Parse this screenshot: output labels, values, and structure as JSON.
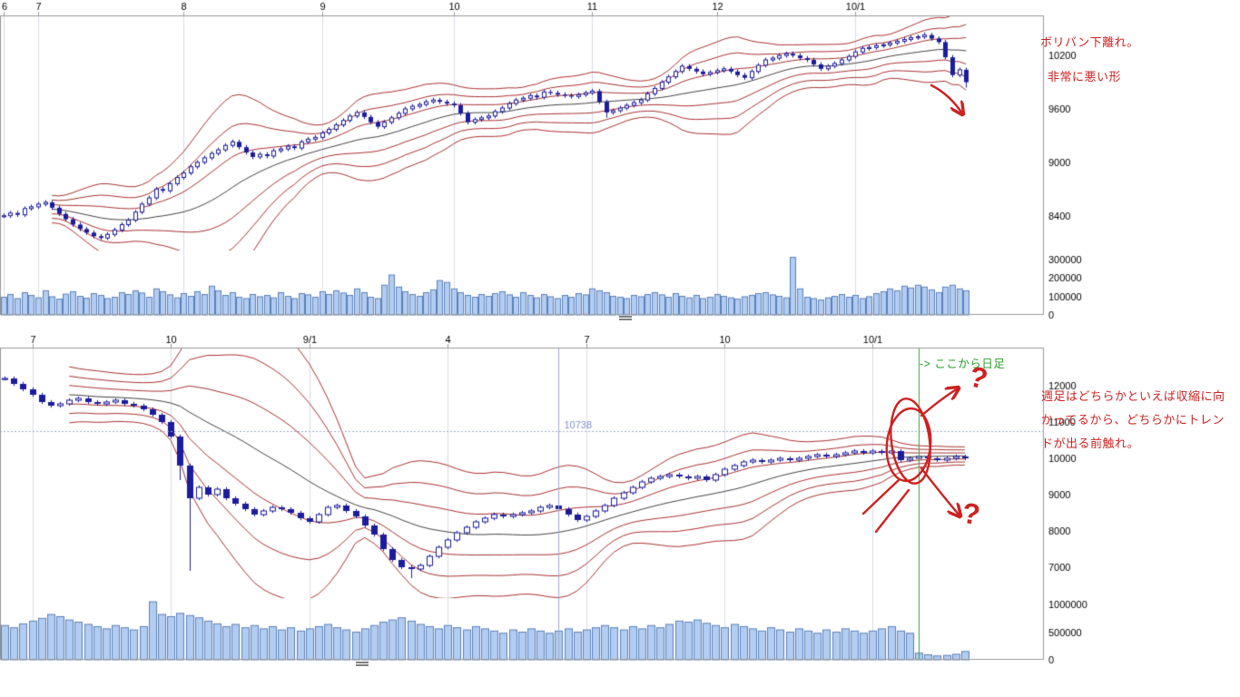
{
  "colors": {
    "candle": "#1c1c9e",
    "volume_fill": "#b3cdf2",
    "volume_border": "#5b80b8",
    "band": "#a83232",
    "band_mid": "#444444",
    "grid": "#d9dde9",
    "frame": "#9a9a9a",
    "crosshair": "#a0abce",
    "crosshair_label": "#8691c9",
    "annotation_red": "#cc2222",
    "annotation_green": "#2ca02c",
    "event_line_green": "#3aa53a"
  },
  "annotations": {
    "daily": {
      "line1": "ボリバン下離れ。",
      "line2": "非常に悪い形"
    },
    "weekly": {
      "green_note": "-> ここから日足",
      "red_lines": [
        "週足はどちらかといえば収縮に向",
        "かってるから、どちらかにトレン",
        "ドが出る前触れ。"
      ],
      "question_mark": "?"
    }
  },
  "chart_data": [
    {
      "id": "daily-chart",
      "type": "candlestick",
      "timeframe_hint": "daily with bollinger bands and volume",
      "x_axis": {
        "labels": [
          {
            "text": "6",
            "bar": 0
          },
          {
            "text": "7",
            "bar": 5
          },
          {
            "text": "8",
            "bar": 26
          },
          {
            "text": "9",
            "bar": 46
          },
          {
            "text": "10",
            "bar": 65
          },
          {
            "text": "11",
            "bar": 85
          },
          {
            "text": "12",
            "bar": 103
          },
          {
            "text": "10/1",
            "bar": 123
          }
        ]
      },
      "y_axis": {
        "min": 8050,
        "max": 10650,
        "ticks": [
          10200,
          9600,
          9000,
          8400
        ]
      },
      "volume_axis": {
        "max": 347000,
        "ticks": [
          300000,
          200000,
          100000,
          0
        ]
      },
      "overlays": {
        "bollinger_period": 20,
        "bollinger_sigmas": [
          1,
          2,
          3
        ]
      },
      "candle_rule": {
        "open": "previous_close",
        "default_wick": 25
      },
      "closes": [
        8400,
        8430,
        8410,
        8480,
        8500,
        8530,
        8550,
        8490,
        8420,
        8360,
        8300,
        8250,
        8210,
        8170,
        8150,
        8190,
        8240,
        8300,
        8350,
        8440,
        8530,
        8600,
        8700,
        8680,
        8760,
        8830,
        8880,
        8950,
        9000,
        9050,
        9100,
        9140,
        9190,
        9230,
        9170,
        9110,
        9060,
        9090,
        9070,
        9130,
        9150,
        9180,
        9160,
        9230,
        9260,
        9280,
        9330,
        9370,
        9420,
        9470,
        9520,
        9560,
        9510,
        9450,
        9400,
        9450,
        9500,
        9550,
        9600,
        9630,
        9650,
        9680,
        9700,
        9680,
        9660,
        9640,
        9550,
        9450,
        9480,
        9500,
        9520,
        9570,
        9610,
        9660,
        9700,
        9720,
        9750,
        9730,
        9790,
        9780,
        9760,
        9750,
        9740,
        9760,
        9780,
        9800,
        9680,
        9560,
        9580,
        9610,
        9640,
        9670,
        9700,
        9770,
        9830,
        9900,
        9960,
        10020,
        10080,
        10050,
        10020,
        9990,
        10010,
        10030,
        10050,
        10020,
        9980,
        9950,
        10020,
        10090,
        10150,
        10170,
        10200,
        10220,
        10200,
        10170,
        10150,
        10100,
        10050,
        10080,
        10110,
        10150,
        10190,
        10240,
        10280,
        10290,
        10310,
        10320,
        10340,
        10360,
        10380,
        10400,
        10410,
        10430,
        10390,
        10350,
        10180,
        9980,
        10040,
        9900
      ],
      "volumes": [
        95000,
        110000,
        88000,
        120000,
        105000,
        92000,
        130000,
        98000,
        85000,
        112000,
        125000,
        100000,
        90000,
        115000,
        105000,
        88000,
        95000,
        120000,
        110000,
        130000,
        118000,
        95000,
        140000,
        125000,
        108000,
        92000,
        115000,
        100000,
        125000,
        110000,
        155000,
        130000,
        105000,
        120000,
        95000,
        88000,
        110000,
        98000,
        105000,
        92000,
        120000,
        100000,
        88000,
        115000,
        108000,
        95000,
        125000,
        110000,
        130000,
        118000,
        105000,
        140000,
        120000,
        95000,
        88000,
        160000,
        215000,
        150000,
        125000,
        110000,
        100000,
        120000,
        135000,
        185000,
        175000,
        140000,
        120000,
        105000,
        95000,
        110000,
        100000,
        115000,
        125000,
        108000,
        95000,
        120000,
        105000,
        92000,
        110000,
        98000,
        88000,
        105000,
        95000,
        115000,
        108000,
        140000,
        130000,
        120000,
        100000,
        95000,
        88000,
        105000,
        98000,
        110000,
        120000,
        108000,
        95000,
        115000,
        100000,
        92000,
        105000,
        88000,
        95000,
        110000,
        100000,
        92000,
        85000,
        98000,
        105000,
        115000,
        120000,
        108000,
        100000,
        92000,
        310000,
        140000,
        95000,
        88000,
        80000,
        92000,
        100000,
        110000,
        95000,
        105000,
        88000,
        98000,
        115000,
        125000,
        140000,
        130000,
        155000,
        145000,
        160000,
        150000,
        135000,
        120000,
        150000,
        160000,
        140000,
        130000
      ],
      "low_overrides": {
        "87": 9500,
        "139": 9840
      },
      "high_overrides": {
        "133": 10460
      }
    },
    {
      "id": "weekly-chart",
      "type": "candlestick",
      "timeframe_hint": "weekly with bollinger bands and volume",
      "x_axis": {
        "labels": [
          {
            "text": "7",
            "bar": 3
          },
          {
            "text": "10",
            "bar": 18
          },
          {
            "text": "9/1",
            "bar": 33
          },
          {
            "text": "4",
            "bar": 48
          },
          {
            "text": "7",
            "bar": 63
          },
          {
            "text": "10",
            "bar": 78
          },
          {
            "text": "10/1",
            "bar": 94
          }
        ]
      },
      "y_axis": {
        "min": 6250,
        "max": 13050,
        "ticks": [
          12000,
          11000,
          10000,
          9000,
          8000,
          7000
        ]
      },
      "volume_axis": {
        "max": 1100000,
        "ticks": [
          1000000,
          500000,
          0
        ]
      },
      "overlays": {
        "bollinger_period": 20,
        "bollinger_sigmas": [
          1,
          2,
          3
        ]
      },
      "candle_rule": {
        "open": "previous_close",
        "default_wick": 55
      },
      "closes": [
        12200,
        12050,
        11900,
        11750,
        11550,
        11450,
        11500,
        11600,
        11650,
        11550,
        11500,
        11550,
        11600,
        11500,
        11450,
        11350,
        11200,
        11000,
        10600,
        9800,
        8900,
        9200,
        9000,
        9150,
        8900,
        8750,
        8600,
        8450,
        8550,
        8650,
        8600,
        8500,
        8350,
        8250,
        8450,
        8650,
        8700,
        8550,
        8400,
        8150,
        7900,
        7500,
        7200,
        7000,
        6950,
        7050,
        7300,
        7550,
        7750,
        7950,
        8100,
        8250,
        8350,
        8450,
        8400,
        8450,
        8500,
        8550,
        8650,
        8700,
        8600,
        8450,
        8300,
        8400,
        8550,
        8700,
        8900,
        9050,
        9200,
        9350,
        9450,
        9500,
        9550,
        9500,
        9450,
        9500,
        9400,
        9550,
        9700,
        9800,
        9900,
        9950,
        9900,
        9950,
        10000,
        9950,
        10000,
        10050,
        10100,
        10050,
        10100,
        10150,
        10200,
        10150,
        10200,
        10150,
        10200,
        9950,
        10000,
        10050,
        10000,
        9950,
        10000,
        10050,
        10000
      ],
      "volumes": [
        620000,
        580000,
        650000,
        700000,
        750000,
        820000,
        780000,
        720000,
        680000,
        640000,
        600000,
        560000,
        620000,
        580000,
        540000,
        600000,
        1050000,
        820000,
        780000,
        840000,
        800000,
        760000,
        700000,
        650000,
        600000,
        640000,
        580000,
        620000,
        560000,
        600000,
        540000,
        580000,
        520000,
        560000,
        600000,
        640000,
        580000,
        540000,
        500000,
        560000,
        620000,
        680000,
        720000,
        760000,
        700000,
        640000,
        600000,
        560000,
        620000,
        580000,
        540000,
        600000,
        560000,
        520000,
        480000,
        540000,
        500000,
        560000,
        520000,
        480000,
        520000,
        560000,
        500000,
        540000,
        580000,
        620000,
        580000,
        540000,
        600000,
        560000,
        620000,
        580000,
        640000,
        700000,
        680000,
        720000,
        660000,
        620000,
        580000,
        640000,
        600000,
        560000,
        520000,
        580000,
        540000,
        500000,
        560000,
        520000,
        480000,
        540000,
        500000,
        560000,
        520000,
        480000,
        520000,
        560000,
        600000,
        520000,
        480000,
        120000,
        90000,
        70000,
        80000,
        100000,
        150000
      ],
      "low_overrides": {
        "19": 9400,
        "20": 6900,
        "44": 6700
      },
      "high_overrides": {},
      "crosshair": {
        "bar": 60,
        "price": 10738,
        "label": "10738"
      },
      "event_line": {
        "bar": 99
      }
    }
  ]
}
